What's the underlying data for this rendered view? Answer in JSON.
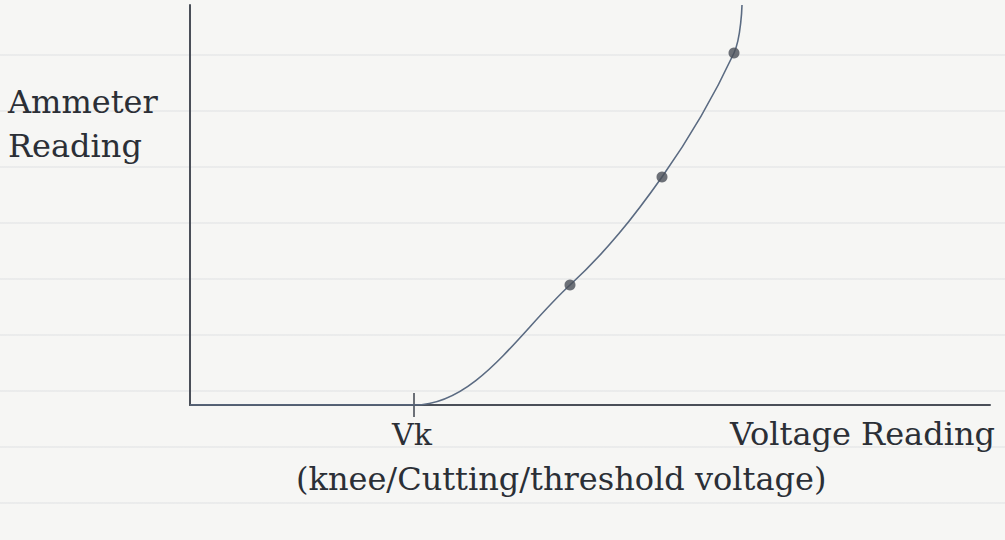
{
  "chart_data": {
    "type": "line",
    "x_label": "Voltage Reading",
    "y_label": "Ammeter Reading",
    "xlim": [
      0,
      10
    ],
    "ylim": [
      0,
      10
    ],
    "tick_labels": false,
    "grid": false,
    "series": [
      {
        "type": "line",
        "x": [
          0,
          2.8,
          4.75,
          5.9,
          6.8,
          6.9
        ],
        "values": [
          0,
          0,
          3.0,
          5.7,
          8.8,
          10
        ],
        "color": "#5b6b82",
        "marker": "none",
        "line_style": "solid"
      },
      {
        "type": "scatter",
        "x": [
          4.75,
          5.9,
          6.8
        ],
        "values": [
          3.0,
          5.7,
          8.8
        ],
        "color": "#4a4f58",
        "marker": "circle"
      }
    ],
    "annotations": [
      {
        "text": "Vk",
        "x": 2.8
      },
      {
        "text": "(knee/Cutting/threshold voltage)",
        "x": 2.8
      }
    ]
  }
}
